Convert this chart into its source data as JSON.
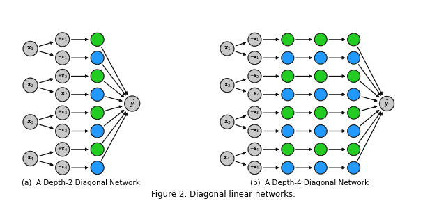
{
  "fig_width": 6.4,
  "fig_height": 2.89,
  "bg_color": "#ffffff",
  "gray": "#c8c8c8",
  "green": "#22cc22",
  "blue": "#2299ff",
  "caption_a": "(a)  A Depth-2 Diagonal Network",
  "caption_b": "(b)  A Depth-4 Diagonal Network",
  "figure_caption": "Figure 2: Diagonal linear networks.",
  "layer1_labels": [
    "+x_1",
    "-x_1",
    "+x_2",
    "-x_2",
    "+x_3",
    "-x_3",
    "+x_4",
    "-x_4"
  ]
}
